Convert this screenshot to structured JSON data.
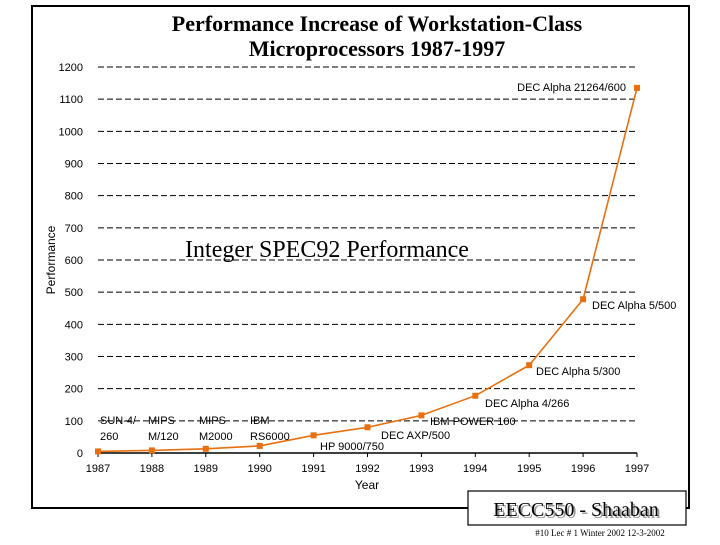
{
  "chart_data": {
    "type": "line",
    "title": "Performance Increase of Workstation-Class Microprocessors 1987-1997",
    "title_lines": [
      "Performance Increase of Workstation-Class",
      "Microprocessors 1987-1997"
    ],
    "subtitle": "Integer SPEC92 Performance",
    "xlabel": "Year",
    "ylabel": "Performance",
    "xlim": [
      1987,
      1997
    ],
    "ylim": [
      0,
      1200
    ],
    "xticks": [
      1987,
      1988,
      1989,
      1990,
      1991,
      1992,
      1993,
      1994,
      1995,
      1996,
      1997
    ],
    "yticks": [
      0,
      100,
      200,
      300,
      400,
      500,
      600,
      700,
      800,
      900,
      1000,
      1100,
      1200
    ],
    "grid": true,
    "series_color": "#e8700f",
    "points": [
      {
        "x": 1987,
        "y": 5,
        "label": [
          "SUN-4/",
          "260"
        ]
      },
      {
        "x": 1988,
        "y": 8,
        "label": [
          "MIPS",
          "M/120"
        ]
      },
      {
        "x": 1989,
        "y": 13,
        "label": [
          "MIPS",
          "M2000"
        ]
      },
      {
        "x": 1990,
        "y": 22,
        "label": [
          "IBM",
          "RS6000"
        ]
      },
      {
        "x": 1991,
        "y": 55,
        "label": [
          "HP 9000/750"
        ]
      },
      {
        "x": 1992,
        "y": 80,
        "label": [
          "DEC AXP/500"
        ]
      },
      {
        "x": 1993,
        "y": 117,
        "label": [
          "IBM POWER 100"
        ]
      },
      {
        "x": 1994,
        "y": 178,
        "label": [
          "DEC Alpha 4/266"
        ]
      },
      {
        "x": 1995,
        "y": 273,
        "label": [
          "DEC Alpha 5/300"
        ]
      },
      {
        "x": 1996,
        "y": 478,
        "label": [
          "DEC Alpha 5/500"
        ]
      },
      {
        "x": 1997,
        "y": 1135,
        "label": [
          "DEC Alpha 21264/600"
        ]
      }
    ]
  },
  "footer": {
    "badge": "EECC550 - Shaaban",
    "note": "#10 Lec # 1 Winter 2002 12-3-2002"
  }
}
